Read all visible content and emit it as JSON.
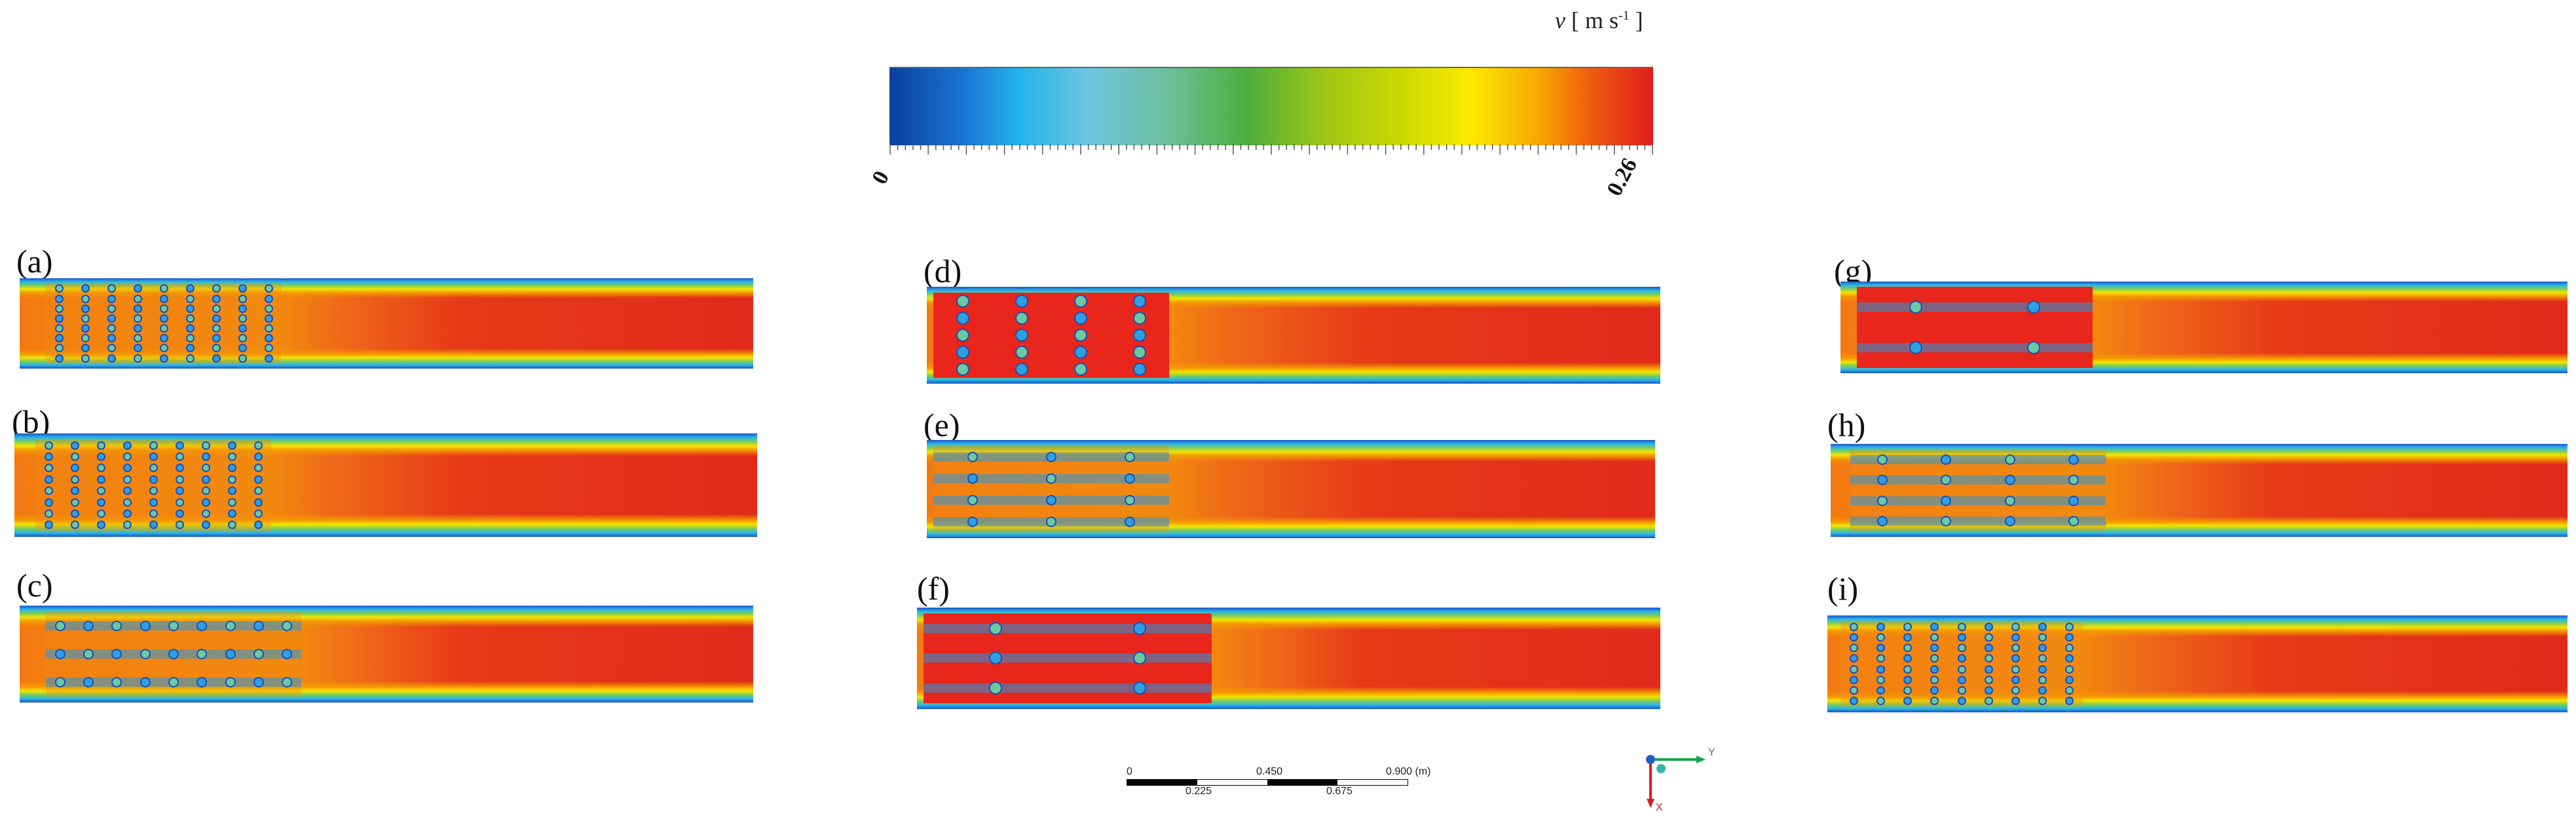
{
  "legend": {
    "variable": "v",
    "unit_open": "[",
    "unit": "m s",
    "unit_exp": "-1",
    "unit_close": "]",
    "min_label": "0",
    "max_label": "0.26",
    "colors": [
      "#0b3f9c",
      "#1b76d6",
      "#22b4ea",
      "#6cc6e0",
      "#6ebfa0",
      "#4dae3a",
      "#9ec715",
      "#cbd800",
      "#fbeb00",
      "#f7a800",
      "#f05a12",
      "#e01e1e"
    ]
  },
  "panels": [
    {
      "label": "(a)",
      "rows": 8,
      "cols": 9,
      "style": "dense"
    },
    {
      "label": "(b)",
      "rows": 8,
      "cols": 9,
      "style": "dense"
    },
    {
      "label": "(c)",
      "rows": 3,
      "cols": 9,
      "style": "rows"
    },
    {
      "label": "(d)",
      "rows": 5,
      "cols": 4,
      "style": "sparse"
    },
    {
      "label": "(e)",
      "rows": 4,
      "cols": 3,
      "style": "rows"
    },
    {
      "label": "(f)",
      "rows": 3,
      "cols": 2,
      "style": "cluster"
    },
    {
      "label": "(g)",
      "rows": 2,
      "cols": 2,
      "style": "cluster"
    },
    {
      "label": "(h)",
      "rows": 4,
      "cols": 4,
      "style": "rows"
    },
    {
      "label": "(i)",
      "rows": 8,
      "cols": 9,
      "style": "dense"
    }
  ],
  "scale_bar": {
    "top_labels": [
      "0",
      "0.450",
      "0.900 (m)"
    ],
    "bottom_labels": [
      "0.225",
      "0.675"
    ]
  },
  "axes": {
    "y_label": "Y",
    "x_label": "X"
  }
}
